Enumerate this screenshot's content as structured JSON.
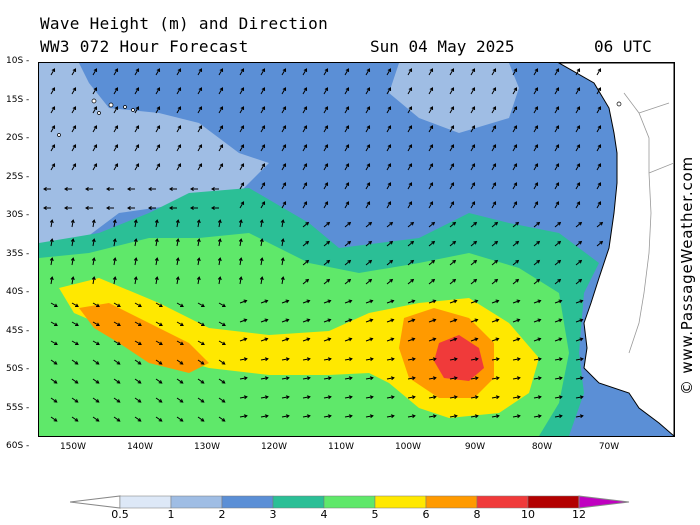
{
  "header": {
    "title_line1": "Wave Height (m) and Direction",
    "title_line2": "WW3 072 Hour Forecast",
    "date": "Sun 04 May 2025",
    "time": "06 UTC"
  },
  "watermark": "© www.PassageWeather.com",
  "axes": {
    "latitude_labels": [
      "10S",
      "15S",
      "20S",
      "25S",
      "30S",
      "35S",
      "40S",
      "45S",
      "50S",
      "55S",
      "60S"
    ],
    "longitude_labels": [
      "150W",
      "140W",
      "130W",
      "120W",
      "110W",
      "100W",
      "90W",
      "80W",
      "70W"
    ]
  },
  "legend": {
    "scale_labels": [
      "0.5",
      "1",
      "2",
      "3",
      "4",
      "5",
      "6",
      "8",
      "10",
      "12"
    ],
    "colors": [
      "#dde8f7",
      "#9fbde4",
      "#5b8fd6",
      "#2bbf96",
      "#5fe86a",
      "#ffe800",
      "#ff9a00",
      "#f03a3a",
      "#b30000",
      "#c000c0"
    ]
  },
  "colors": {
    "land": "#ffffff",
    "ocean_base": "#5b8fd6"
  }
}
